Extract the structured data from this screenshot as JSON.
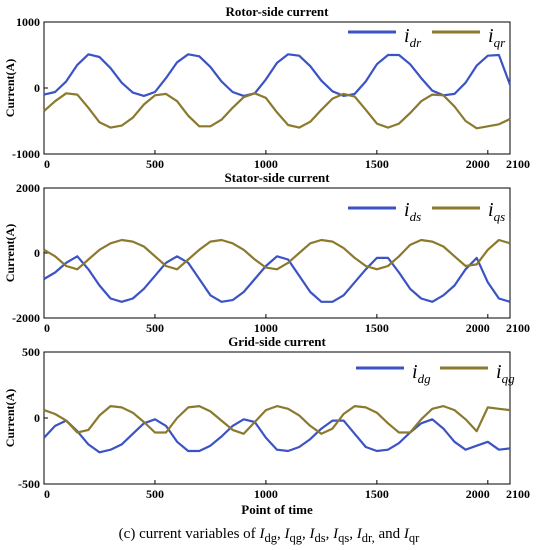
{
  "figure": {
    "caption": {
      "prefix": "(c) current variables of",
      "terms": [
        {
          "base": "I",
          "sub": "dg",
          "sep": ", "
        },
        {
          "base": "I",
          "sub": "qg",
          "sep": ", "
        },
        {
          "base": "I",
          "sub": "ds",
          "sep": ", "
        },
        {
          "base": "I",
          "sub": "qs",
          "sep": ", "
        },
        {
          "base": "I",
          "sub": "dr,",
          "sep": " and "
        },
        {
          "base": "I",
          "sub": "qr",
          "sep": ""
        }
      ]
    },
    "colors": {
      "blue": "#3b53c4",
      "olive": "#8b7a2e",
      "axis": "#000000"
    }
  },
  "chart_data": [
    {
      "type": "line",
      "title": "Rotor-side current",
      "xlabel": "",
      "ylabel": "Current(A)",
      "xlim": [
        0,
        2100
      ],
      "ylim": [
        -1000,
        1000
      ],
      "x_ticks": [
        "0",
        "500",
        "1000",
        "1500",
        "2000",
        "2100"
      ],
      "y_ticks": [
        "1000",
        "0",
        "-1000"
      ],
      "legend_position": "top-right",
      "series": [
        {
          "name": "i_dr",
          "label_base": "i",
          "label_sub": "dr",
          "color": "#3b53c4",
          "x": [
            0,
            50,
            100,
            150,
            200,
            250,
            300,
            350,
            400,
            450,
            500,
            550,
            600,
            650,
            700,
            750,
            800,
            850,
            900,
            950,
            1000,
            1050,
            1100,
            1150,
            1200,
            1250,
            1300,
            1350,
            1400,
            1450,
            1500,
            1550,
            1600,
            1650,
            1700,
            1750,
            1800,
            1850,
            1900,
            1950,
            2000,
            2050,
            2100
          ],
          "y": [
            -100,
            -60,
            100,
            350,
            510,
            470,
            300,
            80,
            -70,
            -120,
            -60,
            150,
            390,
            510,
            480,
            320,
            100,
            -60,
            -120,
            -80,
            130,
            380,
            510,
            490,
            330,
            110,
            -50,
            -120,
            -90,
            100,
            360,
            500,
            500,
            360,
            150,
            -40,
            -110,
            -90,
            80,
            340,
            490,
            500,
            50
          ]
        },
        {
          "name": "i_qr",
          "label_base": "i",
          "label_sub": "qr",
          "color": "#8b7a2e",
          "x": [
            0,
            50,
            100,
            150,
            200,
            250,
            300,
            350,
            400,
            450,
            500,
            550,
            600,
            650,
            700,
            750,
            800,
            850,
            900,
            950,
            1000,
            1050,
            1100,
            1150,
            1200,
            1250,
            1300,
            1350,
            1400,
            1450,
            1500,
            1550,
            1600,
            1650,
            1700,
            1750,
            1800,
            1850,
            1900,
            1950,
            2000,
            2050,
            2100
          ],
          "y": [
            -350,
            -200,
            -80,
            -100,
            -300,
            -520,
            -600,
            -570,
            -450,
            -250,
            -110,
            -90,
            -200,
            -420,
            -580,
            -580,
            -480,
            -300,
            -140,
            -80,
            -150,
            -370,
            -560,
            -600,
            -510,
            -330,
            -160,
            -90,
            -130,
            -330,
            -540,
            -600,
            -540,
            -380,
            -200,
            -100,
            -110,
            -280,
            -500,
            -610,
            -580,
            -550,
            -470
          ]
        }
      ]
    },
    {
      "type": "line",
      "title": "Stator-side current",
      "xlabel": "",
      "ylabel": "Current(A)",
      "xlim": [
        0,
        2100
      ],
      "ylim": [
        -2000,
        2000
      ],
      "x_ticks": [
        "0",
        "500",
        "1000",
        "1500",
        "2000",
        "2100"
      ],
      "y_ticks": [
        "2000",
        "0",
        "-2000"
      ],
      "legend_position": "top-right",
      "series": [
        {
          "name": "i_ds",
          "label_base": "i",
          "label_sub": "ds",
          "color": "#3b53c4",
          "x": [
            0,
            50,
            100,
            150,
            200,
            250,
            300,
            350,
            400,
            450,
            500,
            550,
            600,
            650,
            700,
            750,
            800,
            850,
            900,
            950,
            1000,
            1050,
            1100,
            1150,
            1200,
            1250,
            1300,
            1350,
            1400,
            1450,
            1500,
            1550,
            1600,
            1650,
            1700,
            1750,
            1800,
            1850,
            1900,
            1950,
            2000,
            2050,
            2100
          ],
          "y": [
            -800,
            -600,
            -300,
            -100,
            -500,
            -1000,
            -1400,
            -1500,
            -1400,
            -1100,
            -700,
            -300,
            -100,
            -300,
            -800,
            -1300,
            -1500,
            -1450,
            -1200,
            -800,
            -400,
            -100,
            -200,
            -700,
            -1200,
            -1500,
            -1500,
            -1300,
            -900,
            -500,
            -150,
            -150,
            -600,
            -1100,
            -1400,
            -1500,
            -1300,
            -1000,
            -500,
            -150,
            -900,
            -1400,
            -1500
          ]
        },
        {
          "name": "i_qs",
          "label_base": "i",
          "label_sub": "qs",
          "color": "#8b7a2e",
          "x": [
            0,
            50,
            100,
            150,
            200,
            250,
            300,
            350,
            400,
            450,
            500,
            550,
            600,
            650,
            700,
            750,
            800,
            850,
            900,
            950,
            1000,
            1050,
            1100,
            1150,
            1200,
            1250,
            1300,
            1350,
            1400,
            1450,
            1500,
            1550,
            1600,
            1650,
            1700,
            1750,
            1800,
            1850,
            1900,
            1950,
            2000,
            2050,
            2100
          ],
          "y": [
            100,
            -100,
            -400,
            -500,
            -200,
            100,
            300,
            400,
            350,
            200,
            -100,
            -400,
            -500,
            -200,
            100,
            350,
            400,
            300,
            100,
            -200,
            -450,
            -500,
            -300,
            0,
            300,
            400,
            350,
            150,
            -150,
            -400,
            -500,
            -400,
            -100,
            250,
            400,
            350,
            200,
            -100,
            -400,
            -350,
            100,
            400,
            300
          ]
        }
      ]
    },
    {
      "type": "line",
      "title": "Grid-side current",
      "xlabel": "Point of time",
      "ylabel": "Current(A)",
      "xlim": [
        0,
        2100
      ],
      "ylim": [
        -500,
        500
      ],
      "x_ticks": [
        "0",
        "500",
        "1000",
        "1500",
        "2000",
        "2100"
      ],
      "y_ticks": [
        "500",
        "0",
        "-500"
      ],
      "legend_position": "top-right",
      "series": [
        {
          "name": "i_dg",
          "label_base": "i",
          "label_sub": "dg",
          "color": "#3b53c4",
          "x": [
            0,
            50,
            100,
            150,
            200,
            250,
            300,
            350,
            400,
            450,
            500,
            550,
            600,
            650,
            700,
            750,
            800,
            850,
            900,
            950,
            1000,
            1050,
            1100,
            1150,
            1200,
            1250,
            1300,
            1350,
            1400,
            1450,
            1500,
            1550,
            1600,
            1650,
            1700,
            1750,
            1800,
            1850,
            1900,
            1950,
            2000,
            2050,
            2100
          ],
          "y": [
            -150,
            -60,
            -20,
            -100,
            -200,
            -260,
            -240,
            -200,
            -120,
            -40,
            -10,
            -60,
            -180,
            -250,
            -250,
            -210,
            -140,
            -60,
            -10,
            -30,
            -150,
            -240,
            -250,
            -220,
            -160,
            -80,
            -20,
            -20,
            -120,
            -220,
            -250,
            -240,
            -190,
            -110,
            -40,
            -10,
            -80,
            -180,
            -240,
            -210,
            -180,
            -240,
            -230
          ]
        },
        {
          "name": "i_qg",
          "label_base": "i",
          "label_sub": "qg",
          "color": "#8b7a2e",
          "x": [
            0,
            50,
            100,
            150,
            200,
            250,
            300,
            350,
            400,
            450,
            500,
            550,
            600,
            650,
            700,
            750,
            800,
            850,
            900,
            950,
            1000,
            1050,
            1100,
            1150,
            1200,
            1250,
            1300,
            1350,
            1400,
            1450,
            1500,
            1550,
            1600,
            1650,
            1700,
            1750,
            1800,
            1850,
            1900,
            1950,
            2000,
            2050,
            2100
          ],
          "y": [
            60,
            30,
            -20,
            -110,
            -90,
            20,
            90,
            80,
            40,
            -30,
            -110,
            -110,
            0,
            80,
            90,
            50,
            -20,
            -90,
            -120,
            -30,
            60,
            90,
            70,
            20,
            -60,
            -120,
            -80,
            30,
            90,
            80,
            40,
            -40,
            -110,
            -110,
            -10,
            70,
            90,
            60,
            -10,
            -100,
            80,
            70,
            60
          ]
        }
      ]
    }
  ]
}
